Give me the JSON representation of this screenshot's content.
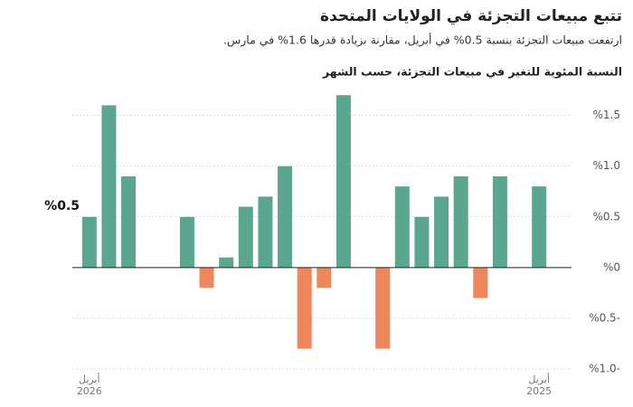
{
  "chart_data": {
    "type": "bar",
    "title": "تتبع مبيعات التجزئة في الولايات المتحدة",
    "subtitle": "ارتفعت مبيعات التجزئة بنسبة 0.5% في أبريل، مقارنة بزيادة قدرها 1.6% في مارس.",
    "y_label": "النسبة المئوية للتغير في مبيعات التجزئة، حسب الشهر",
    "categories": [
      "أبريل 2025",
      null,
      null,
      null,
      null,
      null,
      null,
      null,
      null,
      null,
      null,
      null,
      null,
      null,
      null,
      null,
      null,
      null,
      null,
      null,
      null,
      null,
      null,
      "أبريل 2026"
    ],
    "values": [
      0.8,
      null,
      0.9,
      -0.3,
      0.9,
      0.7,
      0.5,
      0.8,
      -0.8,
      null,
      1.7,
      -0.2,
      -0.8,
      1.0,
      0.7,
      0.6,
      0.1,
      -0.2,
      0.5,
      null,
      null,
      0.9,
      1.6,
      0.5
    ],
    "value_labels": [
      null,
      null,
      null,
      null,
      null,
      null,
      null,
      null,
      null,
      null,
      null,
      null,
      null,
      null,
      null,
      null,
      null,
      null,
      null,
      null,
      null,
      null,
      null,
      "%0.5"
    ],
    "positive_color": "#5aa68f",
    "negative_color": "#f0875a",
    "ylim": [
      -1.0,
      1.8
    ],
    "yticks": [
      {
        "value": -1.0,
        "label": "%1.0-"
      },
      {
        "value": -0.5,
        "label": "%0.5-"
      },
      {
        "value": 0,
        "label": "%0"
      },
      {
        "value": 0.5,
        "label": "%0.5"
      },
      {
        "value": 1.0,
        "label": "%1.0"
      },
      {
        "value": 1.5,
        "label": "%1.5"
      }
    ],
    "grid": true,
    "direction": "rtl"
  }
}
